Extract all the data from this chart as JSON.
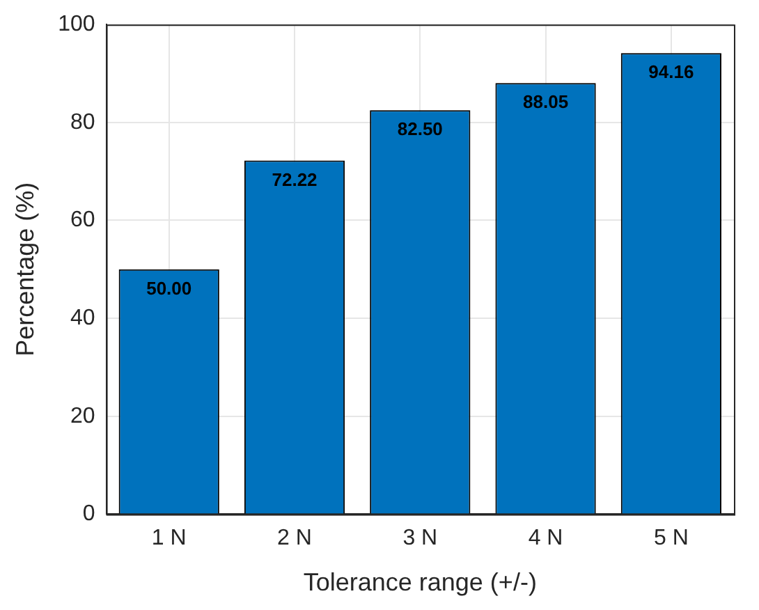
{
  "chart_data": {
    "type": "bar",
    "xlabel": "Tolerance range (+/-)",
    "ylabel": "Percentage (%)",
    "categories": [
      "1 N",
      "2 N",
      "3 N",
      "4 N",
      "5 N"
    ],
    "values": [
      50.0,
      72.22,
      82.5,
      88.05,
      94.16
    ],
    "value_labels": [
      "50.00",
      "72.22",
      "82.50",
      "88.05",
      "94.16"
    ],
    "color": "#0072bd",
    "ylim": [
      0,
      100
    ],
    "yticks": [
      0,
      20,
      40,
      60,
      80,
      100
    ],
    "grid": true
  }
}
